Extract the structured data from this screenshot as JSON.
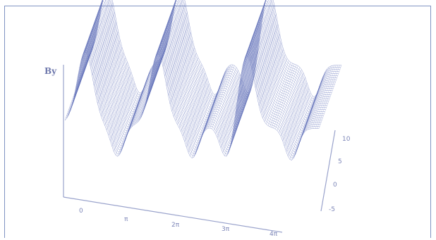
{
  "chart_data": {
    "type": "surface",
    "title": "",
    "z_label": "By",
    "x_ticks": [
      "0",
      "π",
      "2π",
      "3π",
      "4π"
    ],
    "x_range": [
      0,
      12.566
    ],
    "y_ticks": [
      "10",
      "5",
      "0",
      "-5"
    ],
    "y_range": [
      -5,
      10
    ],
    "surface": {
      "baseline": 0.15,
      "peaks": [
        {
          "x": 1.0,
          "amplitude": 1.0
        },
        {
          "x": 4.6,
          "amplitude": 1.0
        },
        {
          "x": 9.0,
          "amplitude": 1.0
        }
      ],
      "troughs": [
        {
          "x": 2.6,
          "amplitude": -0.45
        },
        {
          "x": 6.3,
          "amplitude": -0.45
        },
        {
          "x": 8.0,
          "amplitude": -0.45
        },
        {
          "x": 11.2,
          "amplitude": -0.45
        }
      ]
    },
    "grid": false,
    "wireframe_color": "#5f6fb7"
  }
}
